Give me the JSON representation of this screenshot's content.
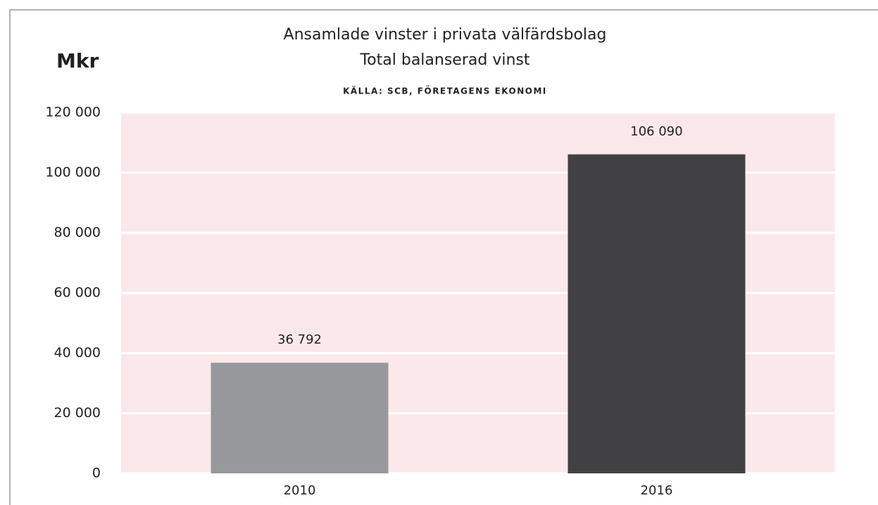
{
  "chart_data": {
    "type": "bar",
    "title": "Ansamlade vinster i privata välfärdsbolag",
    "subtitle": "Total balanserad vinst",
    "source": "KÄLLA: SCB, FÖRETAGENS EKONOMI",
    "ylabel": "Mkr",
    "categories": [
      "2010",
      "2016"
    ],
    "values": [
      36792,
      106090
    ],
    "value_labels": [
      "36 792",
      "106 090"
    ],
    "colors": [
      "#97989c",
      "#414042"
    ],
    "ylim": [
      0,
      120000
    ],
    "yticks": [
      0,
      {
        "value": 20000,
        "label": "20 000"
      },
      {
        "value": 40000,
        "label": "40 000"
      },
      {
        "value": 60000,
        "label": "60 000"
      },
      {
        "value": 80000,
        "label": "80 000"
      },
      {
        "value": 100000,
        "label": "100 000"
      },
      {
        "value": 120000,
        "label": "120 000"
      }
    ],
    "grid": true,
    "plot_background": "#fbe8ea"
  }
}
